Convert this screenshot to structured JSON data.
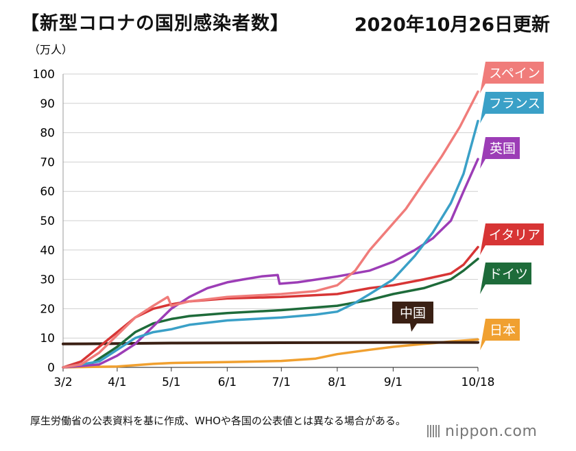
{
  "header": {
    "title": "【新型コロナの国別感染者数】",
    "date": "2020年10月26日更新"
  },
  "chart_data": {
    "type": "line",
    "ylabel": "（万人）",
    "ylim": [
      0,
      100
    ],
    "yticks": [
      0,
      10,
      20,
      30,
      40,
      50,
      60,
      70,
      80,
      90,
      100
    ],
    "xlim": [
      0,
      230
    ],
    "xticks": [
      {
        "label": "3/2",
        "day": 0
      },
      {
        "label": "4/1",
        "day": 30
      },
      {
        "label": "5/1",
        "day": 60
      },
      {
        "label": "6/1",
        "day": 91
      },
      {
        "label": "7/1",
        "day": 121
      },
      {
        "label": "8/1",
        "day": 152
      },
      {
        "label": "9/1",
        "day": 183
      },
      {
        "label": "10/18",
        "day": 230
      }
    ],
    "grid": true,
    "series": [
      {
        "name": "スペイン",
        "color": "#f07c7a",
        "points": [
          [
            0,
            0
          ],
          [
            10,
            1
          ],
          [
            20,
            5
          ],
          [
            30,
            11
          ],
          [
            40,
            17
          ],
          [
            50,
            21
          ],
          [
            58,
            24
          ],
          [
            60,
            21
          ],
          [
            70,
            22.5
          ],
          [
            91,
            24
          ],
          [
            121,
            25
          ],
          [
            140,
            26
          ],
          [
            152,
            28
          ],
          [
            162,
            33
          ],
          [
            170,
            40
          ],
          [
            180,
            47
          ],
          [
            190,
            54
          ],
          [
            200,
            63
          ],
          [
            210,
            72
          ],
          [
            220,
            82
          ],
          [
            230,
            94
          ]
        ]
      },
      {
        "name": "フランス",
        "color": "#3aa0c7",
        "points": [
          [
            0,
            0
          ],
          [
            20,
            2
          ],
          [
            30,
            6
          ],
          [
            40,
            10
          ],
          [
            50,
            12
          ],
          [
            60,
            13
          ],
          [
            70,
            14.5
          ],
          [
            91,
            16
          ],
          [
            121,
            17
          ],
          [
            140,
            18
          ],
          [
            152,
            19
          ],
          [
            162,
            22
          ],
          [
            170,
            25
          ],
          [
            183,
            30
          ],
          [
            195,
            38
          ],
          [
            205,
            46
          ],
          [
            215,
            56
          ],
          [
            222,
            66
          ],
          [
            230,
            84
          ]
        ]
      },
      {
        "name": "英国",
        "color": "#9c3db6",
        "points": [
          [
            0,
            0
          ],
          [
            20,
            1
          ],
          [
            30,
            4
          ],
          [
            40,
            8
          ],
          [
            50,
            14
          ],
          [
            60,
            20
          ],
          [
            70,
            24
          ],
          [
            80,
            27
          ],
          [
            91,
            29
          ],
          [
            100,
            30
          ],
          [
            110,
            31
          ],
          [
            119,
            31.5
          ],
          [
            120,
            28.5
          ],
          [
            130,
            29
          ],
          [
            152,
            31
          ],
          [
            170,
            33
          ],
          [
            183,
            36
          ],
          [
            195,
            40
          ],
          [
            205,
            44
          ],
          [
            215,
            50
          ],
          [
            222,
            60
          ],
          [
            230,
            71
          ]
        ]
      },
      {
        "name": "イタリア",
        "color": "#d73535",
        "points": [
          [
            0,
            0
          ],
          [
            10,
            2
          ],
          [
            20,
            7
          ],
          [
            30,
            12
          ],
          [
            40,
            17
          ],
          [
            50,
            20
          ],
          [
            60,
            21.5
          ],
          [
            70,
            22.5
          ],
          [
            91,
            23.5
          ],
          [
            121,
            24
          ],
          [
            152,
            25
          ],
          [
            170,
            27
          ],
          [
            183,
            28
          ],
          [
            200,
            30
          ],
          [
            215,
            32
          ],
          [
            222,
            35
          ],
          [
            230,
            41
          ]
        ]
      },
      {
        "name": "ドイツ",
        "color": "#1e6b3a",
        "points": [
          [
            0,
            0
          ],
          [
            15,
            1
          ],
          [
            25,
            5
          ],
          [
            30,
            7
          ],
          [
            40,
            12
          ],
          [
            50,
            15
          ],
          [
            60,
            16.5
          ],
          [
            70,
            17.5
          ],
          [
            91,
            18.5
          ],
          [
            121,
            19.5
          ],
          [
            152,
            21
          ],
          [
            170,
            23
          ],
          [
            183,
            25
          ],
          [
            200,
            27
          ],
          [
            215,
            30
          ],
          [
            222,
            33
          ],
          [
            230,
            37
          ]
        ]
      },
      {
        "name": "中国",
        "color": "#3a2014",
        "points": [
          [
            0,
            8
          ],
          [
            30,
            8.1
          ],
          [
            60,
            8.3
          ],
          [
            121,
            8.4
          ],
          [
            183,
            8.5
          ],
          [
            230,
            8.5
          ]
        ]
      },
      {
        "name": "日本",
        "color": "#f0a030",
        "points": [
          [
            0,
            0
          ],
          [
            30,
            0.3
          ],
          [
            50,
            1.2
          ],
          [
            60,
            1.5
          ],
          [
            91,
            1.8
          ],
          [
            121,
            2.2
          ],
          [
            140,
            3
          ],
          [
            152,
            4.5
          ],
          [
            170,
            6
          ],
          [
            183,
            7
          ],
          [
            200,
            8
          ],
          [
            215,
            8.8
          ],
          [
            230,
            9.5
          ]
        ]
      }
    ]
  },
  "footnote": "厚生労働省の公表資料を基に作成、WHOや各国の公表値とは異なる場合がある。",
  "brand": "nippon.com"
}
